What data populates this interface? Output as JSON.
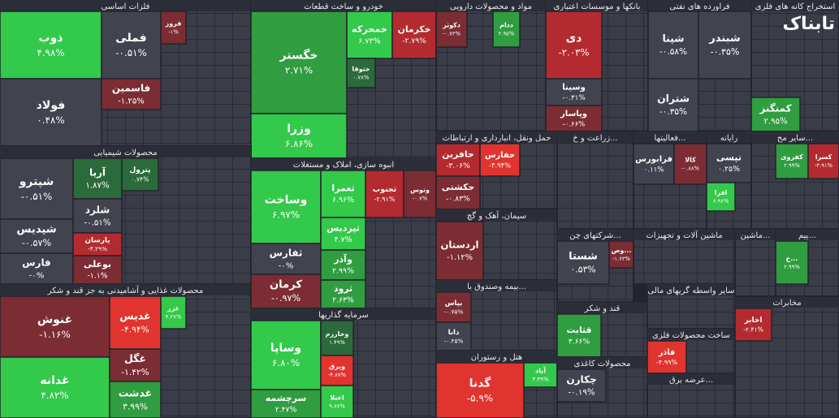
{
  "chart_data": {
    "type": "treemap",
    "watermark": "تابناک",
    "sectors": [
      {
        "name": "فلزات اساسی",
        "tiles": [
          {
            "name": "ذوب",
            "value": 4.98,
            "value_label": "۴.۹۸%"
          },
          {
            "name": "فولاد",
            "value": 0.48,
            "value_label": "۰.۴۸%"
          },
          {
            "name": "فملی",
            "value": -0.51,
            "value_label": "-۰.۵۱%"
          },
          {
            "name": "فاسمین",
            "value": -1.25,
            "value_label": "-۱.۲۵%"
          },
          {
            "name": "فروز",
            "value": -1,
            "value_label": "-۱%"
          }
        ]
      },
      {
        "name": "خودرو و ساخت قطعات",
        "tiles": [
          {
            "name": "خگستر",
            "value": 2.71,
            "value_label": "۲.۷۱%"
          },
          {
            "name": "وزرا",
            "value": 6.86,
            "value_label": "۶.۸۶%"
          },
          {
            "name": "خمحرکه",
            "value": 6.73,
            "value_label": "۶.۷۳%"
          },
          {
            "name": "خکرمان",
            "value": -2.79,
            "value_label": "-۲.۷۹%"
          },
          {
            "name": "ختوقا",
            "value": 0.78,
            "value_label": "۰.۷۸%"
          }
        ]
      },
      {
        "name": "مواد و محصولات دارویی",
        "tiles": [
          {
            "name": "دکوثر",
            "value": -0.73,
            "value_label": "-۰.۷۳%"
          },
          {
            "name": "ددام",
            "value": 2.95,
            "value_label": "۲.۹۵%"
          }
        ]
      },
      {
        "name": "بانکها و موسسات اعتباری",
        "tiles": [
          {
            "name": "دی",
            "value": -2.03,
            "value_label": "-۲.۰۳%"
          },
          {
            "name": "وسینا",
            "value": -0.31,
            "value_label": "-۰.۳۱%"
          },
          {
            "name": "وپاسار",
            "value": -0.66,
            "value_label": "-۰.۶۶%"
          }
        ]
      },
      {
        "name": "فراورده های نفتی",
        "tiles": [
          {
            "name": "شپنا",
            "value": -0.58,
            "value_label": "-۰.۵۸%"
          },
          {
            "name": "شبندر",
            "value": -0.35,
            "value_label": "-۰.۳۵%"
          },
          {
            "name": "شتران",
            "value": -0.35,
            "value_label": "-۰.۳۵%"
          }
        ]
      },
      {
        "name": "استخراج کانه های فلزی",
        "tiles": [
          {
            "name": "کمنگنز",
            "value": 2.95,
            "value_label": "۲.۹۵%"
          }
        ]
      },
      {
        "name": "محصولات شیمیایی",
        "tiles": [
          {
            "name": "شپترو",
            "value": -0.51,
            "value_label": "-۰.۵۱%"
          },
          {
            "name": "شپدیس",
            "value": -0.57,
            "value_label": "-۰.۵۷%"
          },
          {
            "name": "فارس",
            "value": 0,
            "value_label": "-۰%"
          },
          {
            "name": "آریا",
            "value": 1.87,
            "value_label": "۱.۸۷%"
          },
          {
            "name": "شلرد",
            "value": -0.51,
            "value_label": "-۰.۵۱%"
          },
          {
            "name": "پارسان",
            "value": -3.29,
            "value_label": "-۳.۲۹%"
          },
          {
            "name": "بوعلی",
            "value": -1.1,
            "value_label": "-۱.۱%"
          },
          {
            "name": "پترول",
            "value": 0.74,
            "value_label": "۰.۷۴%"
          }
        ]
      },
      {
        "name": "محصولات غذایی و آشامیدنی به جز قند و شکر",
        "tiles": [
          {
            "name": "غنوش",
            "value": -1.16,
            "value_label": "-۱.۱۶%"
          },
          {
            "name": "غدانه",
            "value": 4.82,
            "value_label": "۴.۸۲%"
          },
          {
            "name": "غدیس",
            "value": -4.94,
            "value_label": "-۴.۹۴%"
          },
          {
            "name": "غگل",
            "value": -1.42,
            "value_label": "-۱.۴۲%"
          },
          {
            "name": "غدشت",
            "value": 3.99,
            "value_label": "۳.۹۹%"
          },
          {
            "name": "غزر",
            "value": 4.27,
            "value_label": "۴.۲۷%"
          }
        ]
      },
      {
        "name": "انبوه سازی، املاک و مستغلات",
        "tiles": [
          {
            "name": "وساخت",
            "value": 6.97,
            "value_label": "۶.۹۷%"
          },
          {
            "name": "ثفارس",
            "value": 0,
            "value_label": "-۰%"
          },
          {
            "name": "کرمان",
            "value": -0.97,
            "value_label": "-۰.۹۷%"
          },
          {
            "name": "ثعمرا",
            "value": 6.96,
            "value_label": "۶.۹۶%"
          },
          {
            "name": "ثجنوب",
            "value": -2.91,
            "value_label": "-۲.۹۱%"
          },
          {
            "name": "وتوس",
            "value": -0.7,
            "value_label": "-۰.۷%"
          },
          {
            "name": "ثپردیس",
            "value": 4.7,
            "value_label": "۴.۷%"
          },
          {
            "name": "وآذر",
            "value": 2.99,
            "value_label": "۲.۹۹%"
          },
          {
            "name": "ثرود",
            "value": 2.63,
            "value_label": "۲.۶۳%"
          }
        ]
      },
      {
        "name": "سرمایه گذاریها",
        "tiles": [
          {
            "name": "وساپا",
            "value": 6.8,
            "value_label": "۶.۸۰%"
          },
          {
            "name": "سرچشمه",
            "value": 2.47,
            "value_label": "۲.۴۷%"
          },
          {
            "name": "وخارزم",
            "value": 1.49,
            "value_label": "۱.۴۹%"
          },
          {
            "name": "وبرق",
            "value": -4.87,
            "value_label": "-۴.۸۷%"
          },
          {
            "name": "اعتلا",
            "value": 9.87,
            "value_label": "۹.۸۷%"
          }
        ]
      },
      {
        "name": "حمل ونقل، انبارداری و ارتباطات",
        "tiles": [
          {
            "name": "حافرین",
            "value": -3.06,
            "value_label": "-۳.۰۶%"
          },
          {
            "name": "حفارس",
            "value": -4.94,
            "value_label": "-۴.۹۴%"
          },
          {
            "name": "حکشتی",
            "value": -0.83,
            "value_label": "-۰.۸۳%"
          }
        ]
      },
      {
        "name": "سیمان، آهک و گچ",
        "tiles": [
          {
            "name": "اردستان",
            "value": -1.12,
            "value_label": "-۱.۱۲%"
          }
        ]
      },
      {
        "name": "بیمه وصندوق با...",
        "tiles": [
          {
            "name": "بپاس",
            "value": -0.75,
            "value_label": "-۰.۷۵%"
          },
          {
            "name": "دانا",
            "value": -0.45,
            "value_label": "-۰.۴۵%"
          }
        ]
      },
      {
        "name": "هتل و رستوران",
        "tiles": [
          {
            "name": "گدنا",
            "value": -5.9,
            "value_label": "-۵.۹%"
          },
          {
            "name": "آباد",
            "value": 4.39,
            "value_label": "۴.۳۹%"
          }
        ]
      },
      {
        "name": "زراعت و خ...",
        "tiles": []
      },
      {
        "name": "فعالیتها...",
        "tiles": [
          {
            "name": "فرابورس",
            "value": 0.11,
            "value_label": "۰.۱۱%"
          },
          {
            "name": "کالا",
            "value": -0.88,
            "value_label": "-۰.۸۸%"
          }
        ]
      },
      {
        "name": "رایانه",
        "tiles": [
          {
            "name": "تپسی",
            "value": 0.25,
            "value_label": "۰.۲۵%"
          },
          {
            "name": "افرا",
            "value": 6.96,
            "value_label": "۶.۹۶%"
          }
        ]
      },
      {
        "name": "سایر مح...",
        "tiles": [
          {
            "name": "کفزوی",
            "value": 2.99,
            "value_label": "۲.۹۹%"
          },
          {
            "name": "کسرا",
            "value": -3.91,
            "value_label": "-۳.۹۱%"
          }
        ]
      },
      {
        "name": "شرکتهای چن...",
        "tiles": [
          {
            "name": "شستا",
            "value": 0.53,
            "value_label": "۰.۵۳%"
          },
          {
            "name": "وص...",
            "value": -1.63,
            "value_label": "-۱.۶۳%"
          }
        ]
      },
      {
        "name": "ماشین آلات و تجهیزات",
        "tiles": []
      },
      {
        "name": "سایر واسطه گریهای مالی",
        "tiles": []
      },
      {
        "name": "قند و شکر",
        "tiles": [
          {
            "name": "قثابت",
            "value": 3.66,
            "value_label": "۳.۶۶%"
          }
        ]
      },
      {
        "name": "محصولات کاغذی",
        "tiles": [
          {
            "name": "چکارن",
            "value": -0.19,
            "value_label": "-۰.۱۹%"
          }
        ]
      },
      {
        "name": "ساخت محصولات فلزی",
        "tiles": [
          {
            "name": "فاذر",
            "value": -4.99,
            "value_label": "-۴.۹۹%"
          }
        ]
      },
      {
        "name": "عرضه برق...",
        "tiles": []
      },
      {
        "name": "مخابرات",
        "tiles": [
          {
            "name": "اخابر",
            "value": -2.41,
            "value_label": "-۲.۴۱%"
          }
        ]
      },
      {
        "name": "ماشین...",
        "tiles": []
      },
      {
        "name": "پیم...",
        "tiles": [
          {
            "name": "خ...",
            "value": 2.99,
            "value_label": "۲.۹۹%"
          }
        ]
      }
    ]
  }
}
